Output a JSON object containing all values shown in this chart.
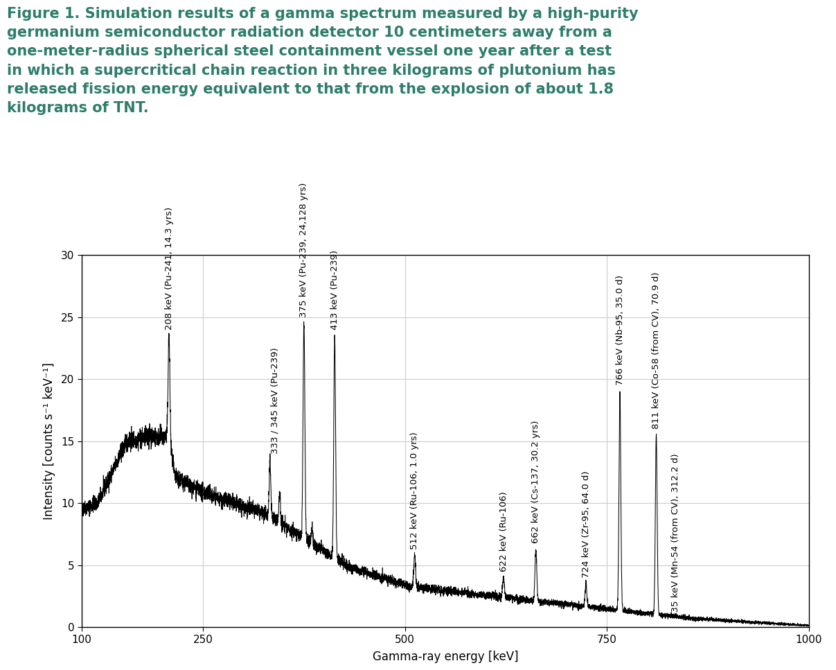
{
  "title_text": "Figure 1. Simulation results of a gamma spectrum measured by a high-purity\ngermanium semiconductor radiation detector 10 centimeters away from a\none-meter-radius spherical steel containment vessel one year after a test\nin which a supercritical chain reaction in three kilograms of plutonium has\nreleased fission energy equivalent to that from the explosion of about 1.8\nkilograms of TNT.",
  "xlabel": "Gamma-ray energy [keV]",
  "ylabel": "Intensity [counts s⁻¹ keV⁻¹]",
  "xlim": [
    100,
    1000
  ],
  "ylim": [
    0,
    30
  ],
  "xticks": [
    100,
    250,
    500,
    750,
    1000
  ],
  "yticks": [
    0,
    5,
    10,
    15,
    20,
    25,
    30
  ],
  "title_color": "#2E7D6B",
  "title_fontsize": 15,
  "axis_label_fontsize": 12,
  "tick_fontsize": 11,
  "annotation_fontsize": 9.5,
  "background_color": "#ffffff",
  "grid_color": "#cccccc",
  "line_color": "#000000",
  "annotations": [
    {
      "energy": 208,
      "peak_height": 23.5,
      "label": "208 keV (Pu-241, 14.3 yrs)"
    },
    {
      "energy": 339,
      "peak_height": 13.5,
      "label": "333 / 345 keV (Pu-239)"
    },
    {
      "energy": 375,
      "peak_height": 24.5,
      "label": "375 keV (Pu-239, 24,128 yrs)"
    },
    {
      "energy": 413,
      "peak_height": 23.5,
      "label": "413 keV (Pu-239)"
    },
    {
      "energy": 512,
      "peak_height": 5.8,
      "label": "512 keV (Ru-106, 1.0 yrs)"
    },
    {
      "energy": 622,
      "peak_height": 4.0,
      "label": "622 keV (Ru-106)"
    },
    {
      "energy": 662,
      "peak_height": 6.3,
      "label": "662 keV (Cs-137, 30.2 yrs)"
    },
    {
      "energy": 724,
      "peak_height": 3.5,
      "label": "724 keV (Zr-95, 64.0 d)"
    },
    {
      "energy": 766,
      "peak_height": 19.0,
      "label": "766 keV (Nb-95, 35.0 d)"
    },
    {
      "energy": 811,
      "peak_height": 15.5,
      "label": "811 keV (Co-58 (from CV), 70.9 d)"
    },
    {
      "energy": 835,
      "peak_height": 0.25,
      "label": "835 keV (Mn-54 (from CV), 312.2 d)"
    }
  ]
}
